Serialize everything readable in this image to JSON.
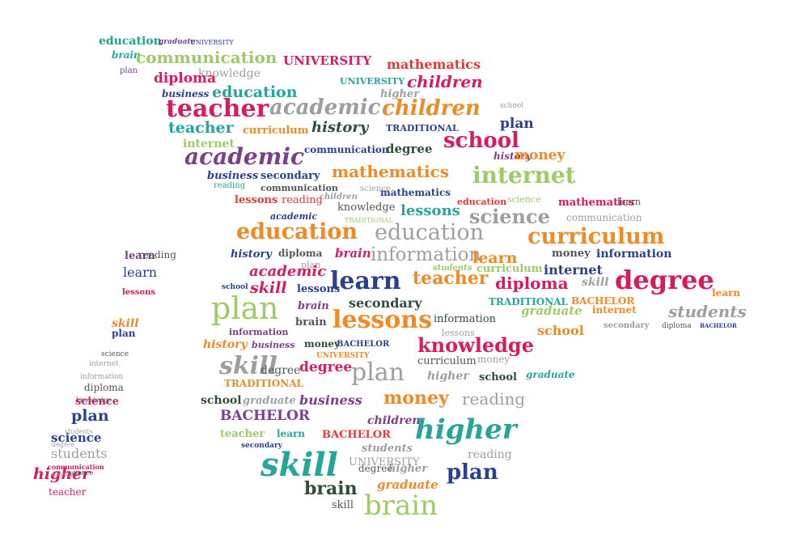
{
  "image": {
    "description_shape": "graduation-cap-with-tassel",
    "background": "#ffffff"
  },
  "palette": {
    "crimson": "#d81b60",
    "teal": "#26a69a",
    "green_teal": "#1ea387",
    "purple": "#7b3f8c",
    "gray": "#9e9e9e",
    "orange": "#f08a24",
    "navy": "#2b3f8f",
    "lime": "#9ccc65",
    "dark_green": "#2e4d3a",
    "brown": "#8d5a3c",
    "red": "#e53935",
    "dark_gray": "#555555",
    "light_green": "#a5d6a7"
  },
  "words": [
    {
      "text": "education",
      "color": "#1ea387"
    },
    {
      "text": "graduate",
      "color": "#7b3f8c"
    },
    {
      "text": "UNIVERSITY",
      "color": "#2b3f8f"
    },
    {
      "text": "brain",
      "color": "#26a69a"
    },
    {
      "text": "communication",
      "color": "#9ccc65"
    },
    {
      "text": "UNIVERSITY",
      "color": "#d81b60"
    },
    {
      "text": "mathematics",
      "color": "#e53935"
    },
    {
      "text": "plan",
      "color": "#7b3f8c"
    },
    {
      "text": "knowledge",
      "color": "#9e9e9e"
    },
    {
      "text": "diploma",
      "color": "#d81b60"
    },
    {
      "text": "UNIVERSITY",
      "color": "#26a69a"
    },
    {
      "text": "children",
      "color": "#d81b60"
    },
    {
      "text": "business",
      "color": "#2b3f8f"
    },
    {
      "text": "education",
      "color": "#26a69a"
    },
    {
      "text": "higher",
      "color": "#9e9e9e"
    },
    {
      "text": "teacher",
      "color": "#d81b60"
    },
    {
      "text": "academic",
      "color": "#9e9e9e"
    },
    {
      "text": "children",
      "color": "#f08a24"
    },
    {
      "text": "school",
      "color": "#9e9e9e"
    },
    {
      "text": "teacher",
      "color": "#26a69a"
    },
    {
      "text": "curriculum",
      "color": "#f08a24"
    },
    {
      "text": "history",
      "color": "#2e4d3a"
    },
    {
      "text": "TRADITIONAL",
      "color": "#2b3f8f"
    },
    {
      "text": "plan",
      "color": "#2b3f8f"
    },
    {
      "text": "internet",
      "color": "#9ccc65"
    },
    {
      "text": "communication",
      "color": "#2b3f8f"
    },
    {
      "text": "degree",
      "color": "#2e4d3a"
    },
    {
      "text": "school",
      "color": "#d81b60"
    },
    {
      "text": "academic",
      "color": "#7b3f8c"
    },
    {
      "text": "history",
      "color": "#7b3f8c"
    },
    {
      "text": "money",
      "color": "#f08a24"
    },
    {
      "text": "business",
      "color": "#2b3f8f"
    },
    {
      "text": "secondary",
      "color": "#2b3f8f"
    },
    {
      "text": "mathematics",
      "color": "#f08a24"
    },
    {
      "text": "internet",
      "color": "#9ccc65"
    },
    {
      "text": "reading",
      "color": "#26a69a"
    },
    {
      "text": "communication",
      "color": "#555555"
    },
    {
      "text": "science",
      "color": "#9e9e9e"
    },
    {
      "text": "lessons",
      "color": "#e53935"
    },
    {
      "text": "reading",
      "color": "#e53935"
    },
    {
      "text": "children",
      "color": "#9e9e9e"
    },
    {
      "text": "mathematics",
      "color": "#2b3f8f"
    },
    {
      "text": "education",
      "color": "#e53935"
    },
    {
      "text": "science",
      "color": "#9ccc65"
    },
    {
      "text": "mathematics",
      "color": "#d81b60"
    },
    {
      "text": "learn",
      "color": "#555555"
    },
    {
      "text": "knowledge",
      "color": "#555555"
    },
    {
      "text": "lessons",
      "color": "#26a69a"
    },
    {
      "text": "science",
      "color": "#9e9e9e"
    },
    {
      "text": "communication",
      "color": "#9e9e9e"
    },
    {
      "text": "academic",
      "color": "#2b3f8f"
    },
    {
      "text": "TRADITIONAL",
      "color": "#9ccc65"
    },
    {
      "text": "education",
      "color": "#f08a24"
    },
    {
      "text": "education",
      "color": "#9e9e9e"
    },
    {
      "text": "curriculum",
      "color": "#f08a24"
    },
    {
      "text": "history",
      "color": "#2b3f8f"
    },
    {
      "text": "diploma",
      "color": "#555555"
    },
    {
      "text": "brain",
      "color": "#d81b60"
    },
    {
      "text": "information",
      "color": "#9e9e9e"
    },
    {
      "text": "learn",
      "color": "#f08a24"
    },
    {
      "text": "money",
      "color": "#555555"
    },
    {
      "text": "information",
      "color": "#2b3f8f"
    },
    {
      "text": "plan",
      "color": "#9e9e9e"
    },
    {
      "text": "academic",
      "color": "#d81b60"
    },
    {
      "text": "learn",
      "color": "#2b3f8f"
    },
    {
      "text": "teacher",
      "color": "#f08a24"
    },
    {
      "text": "diploma",
      "color": "#d81b60"
    },
    {
      "text": "internet",
      "color": "#2b3f8f"
    },
    {
      "text": "skill",
      "color": "#9e9e9e"
    },
    {
      "text": "degree",
      "color": "#d81b60"
    },
    {
      "text": "skill",
      "color": "#d81b60"
    },
    {
      "text": "lessons",
      "color": "#2b3f8f"
    },
    {
      "text": "students",
      "color": "#9ccc65"
    },
    {
      "text": "curriculum",
      "color": "#9ccc65"
    },
    {
      "text": "secondary",
      "color": "#2e4d3a"
    },
    {
      "text": "TRADITIONAL",
      "color": "#26a69a"
    },
    {
      "text": "BACHELOR",
      "color": "#f08a24"
    },
    {
      "text": "learn",
      "color": "#f08a24"
    },
    {
      "text": "school",
      "color": "#2b3f8f"
    },
    {
      "text": "plan",
      "color": "#9ccc65"
    },
    {
      "text": "brain",
      "color": "#7b3f8c"
    },
    {
      "text": "lessons",
      "color": "#f08a24"
    },
    {
      "text": "information",
      "color": "#2e4d3a"
    },
    {
      "text": "graduate",
      "color": "#9ccc65"
    },
    {
      "text": "internet",
      "color": "#f08a24"
    },
    {
      "text": "students",
      "color": "#9e9e9e"
    },
    {
      "text": "brain",
      "color": "#555555"
    },
    {
      "text": "information",
      "color": "#7b3f8c"
    },
    {
      "text": "lessons",
      "color": "#9e9e9e"
    },
    {
      "text": "school",
      "color": "#f08a24"
    },
    {
      "text": "secondary",
      "color": "#9e9e9e"
    },
    {
      "text": "diploma",
      "color": "#555555"
    },
    {
      "text": "BACHELOR",
      "color": "#2b3f8f"
    },
    {
      "text": "history",
      "color": "#f08a24"
    },
    {
      "text": "business",
      "color": "#7b3f8c"
    },
    {
      "text": "money",
      "color": "#2e4d3a"
    },
    {
      "text": "BACHELOR",
      "color": "#2b3f8f"
    },
    {
      "text": "knowledge",
      "color": "#d81b60"
    },
    {
      "text": "UNIVERSITY",
      "color": "#f08a24"
    },
    {
      "text": "skill",
      "color": "#9e9e9e"
    },
    {
      "text": "degree",
      "color": "#555555"
    },
    {
      "text": "degree",
      "color": "#d81b60"
    },
    {
      "text": "plan",
      "color": "#9e9e9e"
    },
    {
      "text": "curriculum",
      "color": "#555555"
    },
    {
      "text": "money",
      "color": "#9e9e9e"
    },
    {
      "text": "higher",
      "color": "#9e9e9e"
    },
    {
      "text": "school",
      "color": "#2e4d3a"
    },
    {
      "text": "graduate",
      "color": "#26a69a"
    },
    {
      "text": "TRADITIONAL",
      "color": "#f08a24"
    },
    {
      "text": "school",
      "color": "#2e4d3a"
    },
    {
      "text": "graduate",
      "color": "#9e9e9e"
    },
    {
      "text": "business",
      "color": "#7b3f8c"
    },
    {
      "text": "money",
      "color": "#f08a24"
    },
    {
      "text": "reading",
      "color": "#9e9e9e"
    },
    {
      "text": "BACHELOR",
      "color": "#7b3f8c"
    },
    {
      "text": "children",
      "color": "#7b3f8c"
    },
    {
      "text": "higher",
      "color": "#26a69a"
    },
    {
      "text": "teacher",
      "color": "#9ccc65"
    },
    {
      "text": "learn",
      "color": "#26a69a"
    },
    {
      "text": "BACHELOR",
      "color": "#e53935"
    },
    {
      "text": "secondary",
      "color": "#2b3f8f"
    },
    {
      "text": "students",
      "color": "#9e9e9e"
    },
    {
      "text": "UNIVERSITY",
      "color": "#9e9e9e"
    },
    {
      "text": "reading",
      "color": "#9e9e9e"
    },
    {
      "text": "skill",
      "color": "#26a69a"
    },
    {
      "text": "degree",
      "color": "#555555"
    },
    {
      "text": "higher",
      "color": "#9e9e9e"
    },
    {
      "text": "plan",
      "color": "#2b3f8f"
    },
    {
      "text": "brain",
      "color": "#2e4d3a"
    },
    {
      "text": "graduate",
      "color": "#f08a24"
    },
    {
      "text": "skill",
      "color": "#555555"
    },
    {
      "text": "brain",
      "color": "#9ccc65"
    },
    {
      "text": "learn",
      "color": "#7b3f8c"
    },
    {
      "text": "learn",
      "color": "#2b3f8f"
    },
    {
      "text": "reading",
      "color": "#555555"
    },
    {
      "text": "lessons",
      "color": "#d81b60"
    },
    {
      "text": "skill",
      "color": "#f08a24"
    },
    {
      "text": "plan",
      "color": "#2b3f8f"
    },
    {
      "text": "science",
      "color": "#555555"
    },
    {
      "text": "internet",
      "color": "#9e9e9e"
    },
    {
      "text": "information",
      "color": "#9e9e9e"
    },
    {
      "text": "diploma",
      "color": "#555555"
    },
    {
      "text": "science",
      "color": "#d81b60"
    },
    {
      "text": "plan",
      "color": "#2b3f8f"
    },
    {
      "text": "science",
      "color": "#2b3f8f"
    },
    {
      "text": "students",
      "color": "#9e9e9e"
    },
    {
      "text": "higher",
      "color": "#d81b60"
    },
    {
      "text": "teacher",
      "color": "#d81b60"
    },
    {
      "text": "knowledge",
      "color": "#555555"
    },
    {
      "text": "money",
      "color": "#9e9e9e"
    },
    {
      "text": "communication",
      "color": "#d81b60"
    },
    {
      "text": "science",
      "color": "#2e4d3a"
    },
    {
      "text": "students",
      "color": "#9e9e9e"
    },
    {
      "text": "degree",
      "color": "#9e9e9e"
    }
  ]
}
